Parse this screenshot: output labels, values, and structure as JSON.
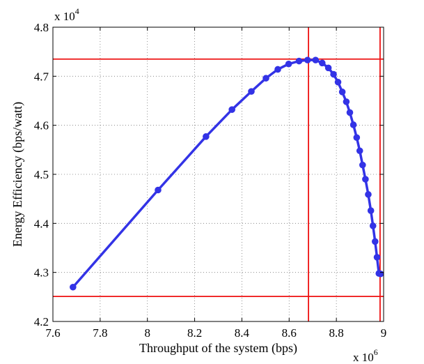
{
  "chart_data": {
    "type": "line",
    "title": "",
    "xlabel": "Throughput of the system (bps)",
    "ylabel": "Energy Efficiency (bps/watt)",
    "x_multiplier": {
      "base": "x 10",
      "exponent": "6"
    },
    "y_multiplier": {
      "base": "x 10",
      "exponent": "4"
    },
    "xlim": [
      7.6,
      9.0
    ],
    "ylim": [
      4.2,
      4.8
    ],
    "xticks": [
      "7.6",
      "7.8",
      "8",
      "8.2",
      "8.4",
      "8.6",
      "8.8",
      "9"
    ],
    "yticks": [
      "4.2",
      "4.3",
      "4.4",
      "4.5",
      "4.6",
      "4.7",
      "4.8"
    ],
    "grid": true,
    "series": [
      {
        "color": "#3333e6",
        "marker": "circle",
        "x": [
          7.685,
          8.045,
          8.248,
          8.358,
          8.44,
          8.502,
          8.552,
          8.598,
          8.642,
          8.678,
          8.712,
          8.74,
          8.766,
          8.788,
          8.807,
          8.825,
          8.842,
          8.857,
          8.872,
          8.886,
          8.899,
          8.911,
          8.923,
          8.935,
          8.946,
          8.955,
          8.964,
          8.972,
          8.98,
          8.987
        ],
        "y": [
          4.27,
          4.468,
          4.577,
          4.632,
          4.669,
          4.696,
          4.714,
          4.725,
          4.731,
          4.733,
          4.733,
          4.727,
          4.717,
          4.704,
          4.688,
          4.668,
          4.648,
          4.626,
          4.601,
          4.575,
          4.548,
          4.519,
          4.49,
          4.459,
          4.426,
          4.395,
          4.363,
          4.331,
          4.298,
          4.297
        ]
      }
    ],
    "reference_lines": {
      "color": "#ee1111",
      "horizontal": [
        4.735,
        4.251
      ],
      "vertical": [
        8.682,
        8.985
      ]
    }
  }
}
